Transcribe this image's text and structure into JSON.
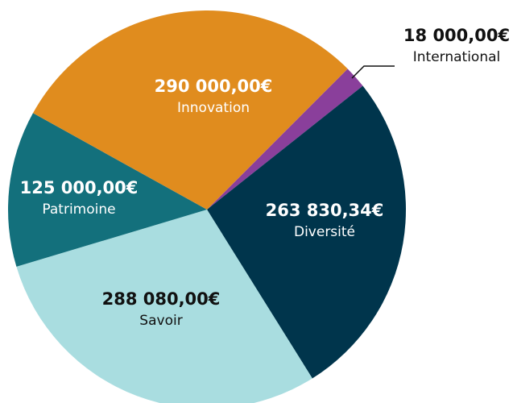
{
  "chart_data": {
    "type": "pie",
    "categories": [
      "International",
      "Diversité",
      "Savoir",
      "Patrimoine",
      "Innovation"
    ],
    "values": [
      18000,
      263830.34,
      288080,
      125000,
      290000
    ],
    "value_labels": [
      "18 000,00€",
      "263 830,34€",
      "288 080,00€",
      "125 000,00€",
      "290 000,00€"
    ],
    "colors": [
      "#8a3f9b",
      "#00354c",
      "#a9dde0",
      "#13707c",
      "#e08c1e"
    ]
  }
}
